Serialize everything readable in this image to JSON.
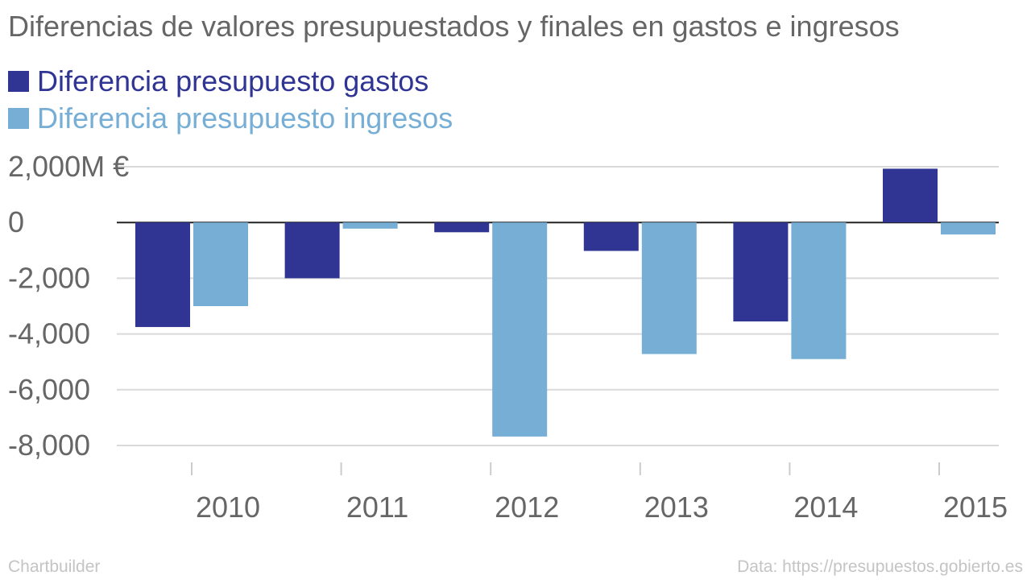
{
  "colors": {
    "gastos": "#303594",
    "ingresos": "#76aed5",
    "text": "#666666",
    "grid": "#d9d9d9",
    "zero": "#222222"
  },
  "chart_data": {
    "type": "bar",
    "title": "Diferencias de valores presupuestados y finales en gastos e ingresos",
    "categories": [
      "2010",
      "2011",
      "2012",
      "2013",
      "2014",
      "2015"
    ],
    "series": [
      {
        "name": "Diferencia presupuesto gastos",
        "values": [
          -3750,
          -2000,
          -350,
          -1020,
          -3550,
          1930
        ]
      },
      {
        "name": "Diferencia presupuesto ingresos",
        "values": [
          -3000,
          -220,
          -7680,
          -4720,
          -4900,
          -430
        ]
      }
    ],
    "yticks": [
      2000,
      0,
      -2000,
      -4000,
      -6000,
      -8000
    ],
    "ytick_labels": [
      "2,000M €",
      "0",
      "-2,000",
      "-4,000",
      "-6,000",
      "-8,000"
    ],
    "ylim": [
      -8000,
      2000
    ],
    "xlabel": "",
    "ylabel": "",
    "grid": true,
    "legend": "top-left"
  },
  "footer": {
    "credit": "Chartbuilder",
    "source": "Data: https://presupuestos.gobierto.es"
  }
}
